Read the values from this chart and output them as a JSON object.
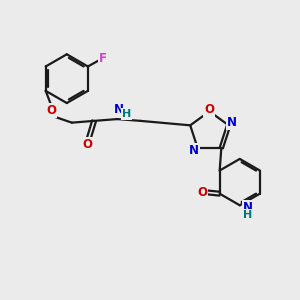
{
  "bg_color": "#ebebeb",
  "bond_color": "#1a1a1a",
  "atom_colors": {
    "F": "#cc44cc",
    "O": "#cc0000",
    "N": "#0000cc",
    "H": "#007777"
  },
  "figsize": [
    3.0,
    3.0
  ],
  "dpi": 100,
  "lw": 1.6,
  "fs": 7.8
}
